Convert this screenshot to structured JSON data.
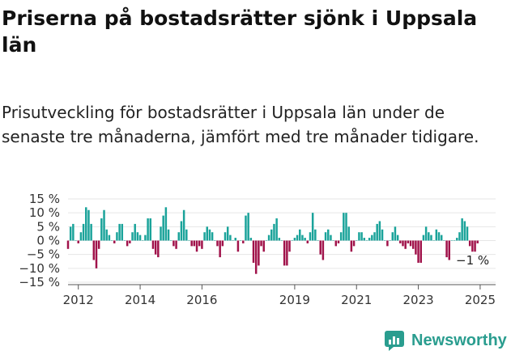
{
  "title": "Priserna på bostadsrätter sjönk i Uppsala län",
  "subtitle": "Prisutveckling för bostadsrätter i Uppsala län under de senaste tre månaderna, jämfört med tre månader tidigare.",
  "brand": {
    "name": "Newsworthy",
    "icon": "chart-bubble-icon"
  },
  "colors": {
    "positive": "#1aa39a",
    "negative": "#a0124a",
    "axis": "#555555",
    "grid": "#e6e6e6",
    "brand": "#2a9d8f"
  },
  "chart_data": {
    "type": "bar",
    "unit": "%",
    "ylim": [
      -15,
      15
    ],
    "yticks": [
      {
        "value": 15,
        "label": "15 %"
      },
      {
        "value": 10,
        "label": "10 %"
      },
      {
        "value": 5,
        "label": "5 %"
      },
      {
        "value": 0,
        "label": "0 %"
      },
      {
        "value": -5,
        "label": "−5 %"
      },
      {
        "value": -10,
        "label": "−10 %"
      },
      {
        "value": -15,
        "label": "−15 %"
      }
    ],
    "xlim": [
      "2011-09",
      "2025-07"
    ],
    "xticks": [
      {
        "value": "2012-01",
        "label": "2012"
      },
      {
        "value": "2014-01",
        "label": "2014"
      },
      {
        "value": "2016-01",
        "label": "2016"
      },
      {
        "value": "2019-01",
        "label": "2019"
      },
      {
        "value": "2021-01",
        "label": "2021"
      },
      {
        "value": "2023-01",
        "label": "2023"
      },
      {
        "value": "2025-01",
        "label": "2025"
      }
    ],
    "grid": true,
    "last_value_label": "−1 %",
    "values": [
      -3,
      5,
      6,
      0,
      -1,
      3,
      6,
      12,
      11,
      6,
      -7,
      -10,
      -3,
      8,
      11,
      4,
      2,
      0,
      -1,
      3,
      6,
      6,
      0,
      -2,
      -1,
      3,
      6,
      3,
      2,
      0,
      2,
      8,
      8,
      -3,
      -5,
      -6,
      5,
      9,
      12,
      4,
      0,
      -2,
      -3,
      3,
      7,
      11,
      4,
      0,
      -2,
      -2,
      -4,
      -2,
      -3,
      3,
      5,
      4,
      3,
      0,
      -2,
      -6,
      -2,
      3,
      5,
      2,
      0,
      1,
      -4,
      0,
      -1,
      9,
      10,
      1,
      -8,
      -12,
      -9,
      -2,
      -4,
      0,
      2,
      4,
      6,
      8,
      1,
      0,
      -9,
      -9,
      -4,
      0,
      1,
      2,
      4,
      2,
      1,
      -1,
      3,
      10,
      4,
      0,
      -5,
      -7,
      3,
      4,
      2,
      0,
      -2,
      -1,
      3,
      10,
      10,
      5,
      -4,
      -2,
      0,
      3,
      3,
      1,
      0,
      1,
      2,
      3,
      6,
      7,
      4,
      0,
      -2,
      0,
      3,
      5,
      2,
      -1,
      -2,
      -3,
      -1,
      -2,
      -3,
      -5,
      -8,
      -8,
      2,
      5,
      3,
      2,
      0,
      4,
      3,
      2,
      0,
      -6,
      -7,
      0,
      0,
      1,
      3,
      8,
      7,
      5,
      -2,
      -4,
      -4,
      -1
    ]
  }
}
